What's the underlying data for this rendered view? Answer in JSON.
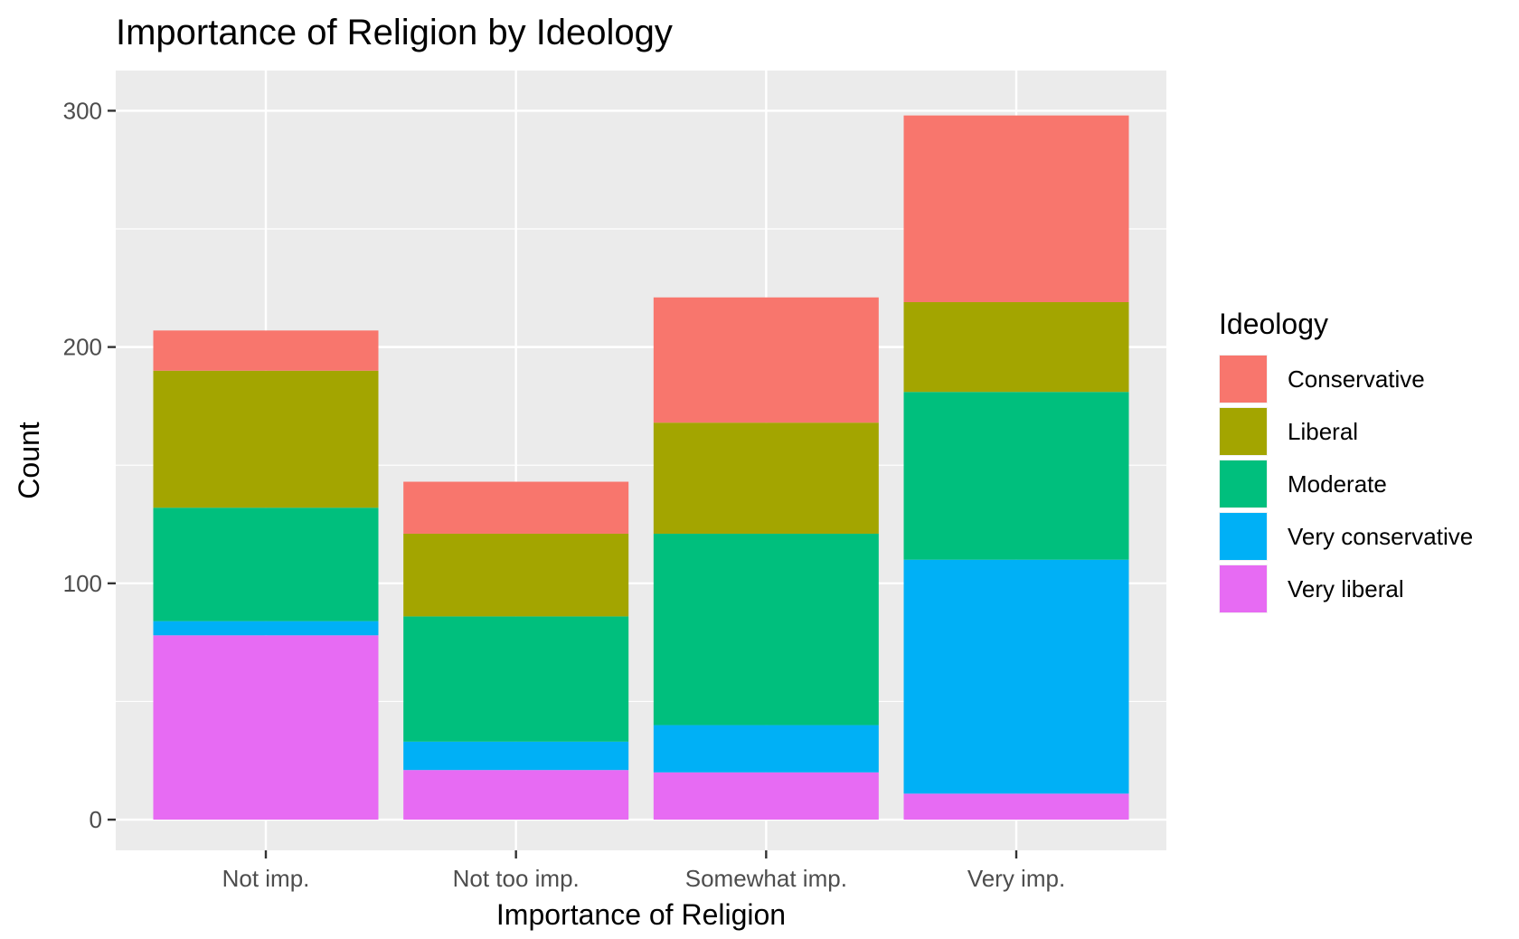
{
  "chart_data": {
    "type": "bar",
    "stacked": true,
    "title": "Importance of Religion by Ideology",
    "xlabel": "Importance of Religion",
    "ylabel": "Count",
    "categories": [
      "Not imp.",
      "Not too imp.",
      "Somewhat imp.",
      "Very imp."
    ],
    "ylim": [
      -13,
      317
    ],
    "yticks": [
      0,
      100,
      200,
      300
    ],
    "yminor": [
      50,
      150,
      250
    ],
    "grid": true,
    "legend": {
      "title": "Ideology",
      "position": "right"
    },
    "series": [
      {
        "name": "Conservative",
        "color": "#F8766D",
        "values": [
          17,
          22,
          53,
          79
        ]
      },
      {
        "name": "Liberal",
        "color": "#A3A500",
        "values": [
          58,
          35,
          47,
          38
        ]
      },
      {
        "name": "Moderate",
        "color": "#00BF7D",
        "values": [
          48,
          53,
          81,
          71
        ]
      },
      {
        "name": "Very conservative",
        "color": "#00B0F6",
        "values": [
          6,
          12,
          20,
          99
        ]
      },
      {
        "name": "Very liberal",
        "color": "#E76BF3",
        "values": [
          78,
          21,
          20,
          11
        ]
      }
    ],
    "stack_order_bottom_to_top": [
      "Very liberal",
      "Very conservative",
      "Moderate",
      "Liberal",
      "Conservative"
    ]
  }
}
